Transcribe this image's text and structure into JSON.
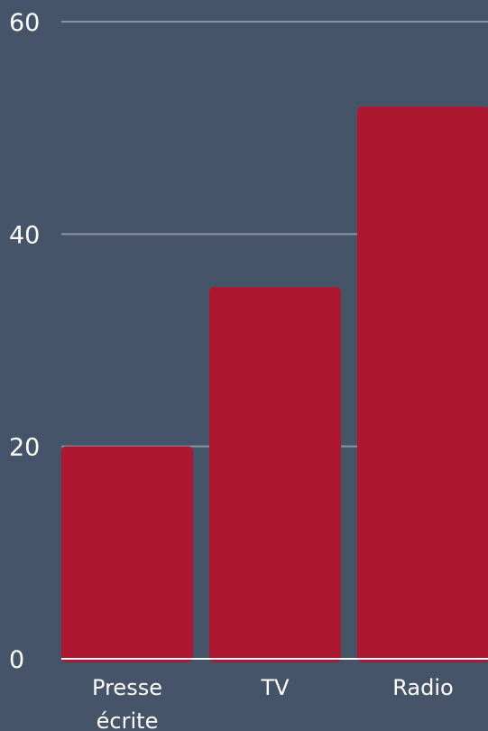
{
  "chart_data": {
    "type": "bar",
    "categories": [
      [
        "Presse",
        "écrite"
      ],
      [
        "TV"
      ],
      [
        "Radio"
      ]
    ],
    "values": [
      20,
      35,
      52
    ],
    "ylim": [
      0,
      60
    ],
    "yticks": [
      "0",
      "20",
      "40",
      "60"
    ],
    "ytick_values": [
      0,
      20,
      40,
      60
    ],
    "grid": true,
    "colors": {
      "background": "#455468",
      "bar": "#AD1830",
      "grid": "#8a94a3",
      "text": "#ffffff"
    }
  }
}
